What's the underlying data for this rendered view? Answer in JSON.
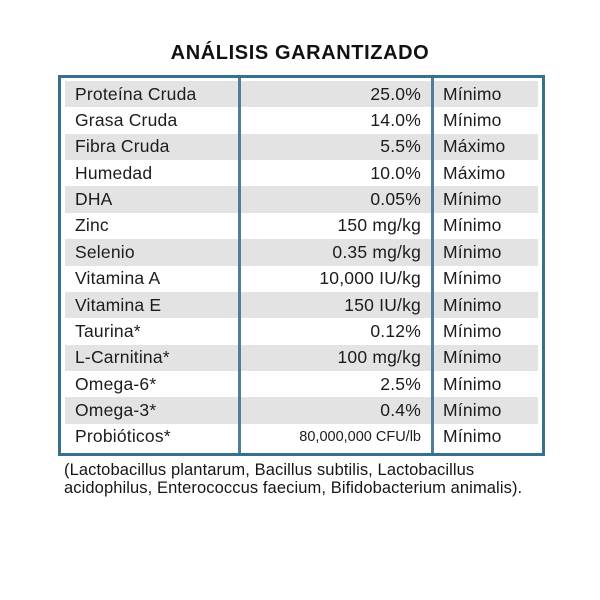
{
  "title": "ANÁLISIS GARANTIZADO",
  "table": {
    "columns": [
      "nutrient",
      "value",
      "basis"
    ],
    "rows": [
      {
        "name": "Proteína Cruda",
        "value": "25.0%",
        "basis": "Mínimo"
      },
      {
        "name": "Grasa Cruda",
        "value": "14.0%",
        "basis": "Mínimo"
      },
      {
        "name": "Fibra Cruda",
        "value": "5.5%",
        "basis": "Máximo"
      },
      {
        "name": "Humedad",
        "value": "10.0%",
        "basis": "Máximo"
      },
      {
        "name": "DHA",
        "value": "0.05%",
        "basis": "Mínimo"
      },
      {
        "name": "Zinc",
        "value": "150 mg/kg",
        "basis": "Mínimo"
      },
      {
        "name": "Selenio",
        "value": "0.35 mg/kg",
        "basis": "Mínimo"
      },
      {
        "name": "Vitamina A",
        "value": "10,000 IU/kg",
        "basis": "Mínimo"
      },
      {
        "name": "Vitamina E",
        "value": "150 IU/kg",
        "basis": "Mínimo"
      },
      {
        "name": "Taurina*",
        "value": "0.12%",
        "basis": "Mínimo"
      },
      {
        "name": "L-Carnitina*",
        "value": "100 mg/kg",
        "basis": "Mínimo"
      },
      {
        "name": "Omega-6*",
        "value": "2.5%",
        "basis": "Mínimo"
      },
      {
        "name": "Omega-3*",
        "value": "0.4%",
        "basis": "Mínimo"
      },
      {
        "name": "Probióticos*",
        "value": "80,000,000 CFU/lb",
        "basis": "Mínimo"
      }
    ]
  },
  "footnote": "(Lactobacillus plantarum, Bacillus subtilis, Lactobacillus acidophilus, Enterococcus faecium, Bifidobacterium animalis).",
  "colors": {
    "border": "#37708e",
    "divider": "#4d7f9b",
    "stripe": "#e3e3e3",
    "text": "#1c1c1c"
  }
}
